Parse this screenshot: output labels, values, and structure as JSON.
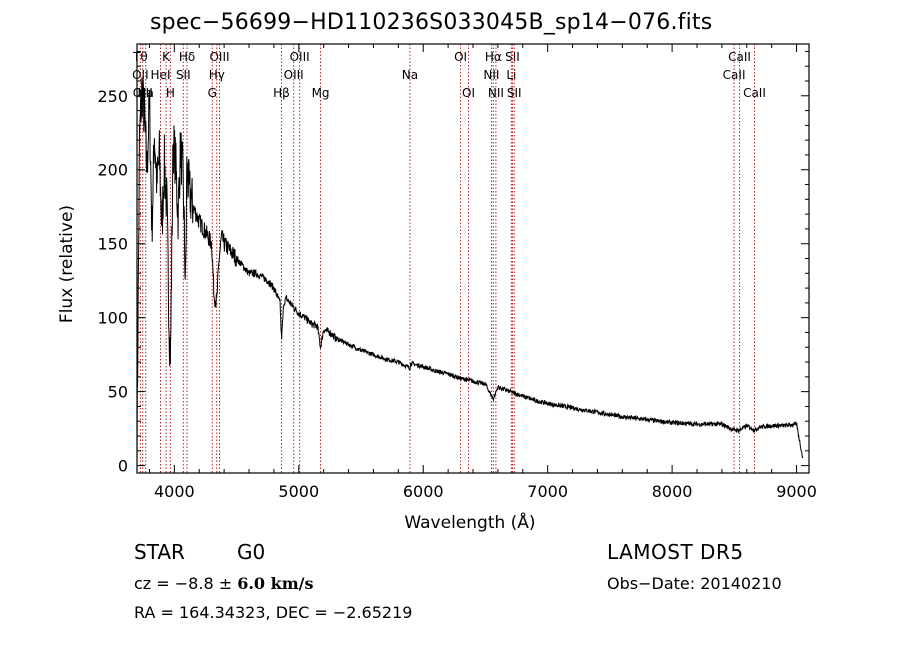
{
  "header": {
    "title": "spec−56699−HD110236S033045B_sp14−076.fits"
  },
  "info": {
    "class": "STAR",
    "subclass": "G0",
    "survey": "LAMOST  DR5",
    "cz_prefix": "cz = −8.8 ± ",
    "cz_value": "6.0 km/s",
    "obs_date": "Obs−Date: 20140210",
    "radec": "RA = 164.34323, DEC =  −2.65219"
  },
  "colors": {
    "line": "#b22222",
    "spectrum": "#000000",
    "axis": "#000000"
  },
  "chart_data": {
    "type": "line",
    "title": "spec−56699−HD110236S033045B_sp14−076.fits",
    "xlabel": "Wavelength (Å)",
    "ylabel": "Flux (relative)",
    "xlim": [
      3700,
      9100
    ],
    "ylim": [
      -5,
      285
    ],
    "xticks": [
      4000,
      5000,
      6000,
      7000,
      8000,
      9000
    ],
    "yticks": [
      0,
      50,
      100,
      150,
      200,
      250
    ],
    "series": [
      {
        "x": [
          3700,
          3720,
          3740,
          3760,
          3780,
          3800,
          3820,
          3840,
          3860,
          3880,
          3900,
          3920,
          3940,
          3960,
          3970,
          3990,
          4010,
          4030,
          4050,
          4070,
          4090,
          4100,
          4120,
          4150,
          4200,
          4250,
          4300,
          4320,
          4340,
          4360,
          4380,
          4400,
          4450,
          4500,
          4550,
          4600,
          4650,
          4700,
          4750,
          4800,
          4850,
          4861,
          4880,
          4900,
          4950,
          5000,
          5050,
          5100,
          5150,
          5175,
          5200,
          5250,
          5300,
          5400,
          5500,
          5600,
          5700,
          5800,
          5893,
          5900,
          6000,
          6100,
          6200,
          6300,
          6400,
          6500,
          6563,
          6600,
          6700,
          6800,
          6900,
          7000,
          7200,
          7400,
          7600,
          7800,
          8000,
          8200,
          8400,
          8498,
          8542,
          8600,
          8662,
          8700,
          8800,
          8900,
          9000,
          9050
        ],
        "values": [
          10,
          220,
          255,
          235,
          200,
          245,
          160,
          225,
          190,
          210,
          160,
          205,
          175,
          90,
          75,
          220,
          205,
          170,
          215,
          195,
          120,
          200,
          185,
          175,
          165,
          158,
          150,
          115,
          110,
          140,
          155,
          150,
          145,
          140,
          135,
          130,
          130,
          128,
          125,
          120,
          110,
          85,
          110,
          113,
          108,
          103,
          100,
          96,
          94,
          80,
          92,
          90,
          86,
          82,
          78,
          75,
          72,
          70,
          66,
          69,
          67,
          64,
          62,
          59,
          57,
          55,
          45,
          53,
          50,
          47,
          44,
          42,
          39,
          36,
          33,
          31,
          29,
          28,
          28,
          24,
          24,
          27,
          24,
          26,
          27,
          27,
          28,
          5
        ]
      }
    ],
    "line_markers": [
      {
        "name": "Tθ",
        "w": 3727,
        "row": 1
      },
      {
        "name": "OII",
        "w": 3727,
        "row": 2
      },
      {
        "name": "OIII",
        "w": 3746,
        "row": 3
      },
      {
        "name": "Ha",
        "w": 3770,
        "row": 3
      },
      {
        "name": "HeI",
        "w": 3889,
        "row": 2
      },
      {
        "name": "K",
        "w": 3934,
        "row": 1
      },
      {
        "name": "H",
        "w": 3968,
        "row": 3
      },
      {
        "name": "Hδ",
        "w": 4102,
        "row": 1
      },
      {
        "name": "SII",
        "w": 4072,
        "row": 2
      },
      {
        "name": "OIII",
        "w": 4363,
        "row": 1
      },
      {
        "name": "Hγ",
        "w": 4341,
        "row": 2
      },
      {
        "name": "G",
        "w": 4305,
        "row": 3
      },
      {
        "name": "Hβ",
        "w": 4861,
        "row": 3
      },
      {
        "name": "OIII",
        "w": 5007,
        "row": 1
      },
      {
        "name": "OIII",
        "w": 4959,
        "row": 2
      },
      {
        "name": "Mg",
        "w": 5175,
        "row": 3
      },
      {
        "name": "Na",
        "w": 5893,
        "row": 2
      },
      {
        "name": "OI",
        "w": 6300,
        "row": 1
      },
      {
        "name": "OI",
        "w": 6364,
        "row": 3
      },
      {
        "name": "Hα",
        "w": 6563,
        "row": 1
      },
      {
        "name": "NII",
        "w": 6548,
        "row": 2
      },
      {
        "name": "NII",
        "w": 6584,
        "row": 3
      },
      {
        "name": "SII",
        "w": 6717,
        "row": 1
      },
      {
        "name": "Li",
        "w": 6708,
        "row": 2
      },
      {
        "name": "SII",
        "w": 6731,
        "row": 3
      },
      {
        "name": "CaII",
        "w": 8542,
        "row": 1
      },
      {
        "name": "CaII",
        "w": 8498,
        "row": 2
      },
      {
        "name": "CaII",
        "w": 8662,
        "row": 3
      }
    ],
    "grid": false,
    "legend": "none"
  }
}
